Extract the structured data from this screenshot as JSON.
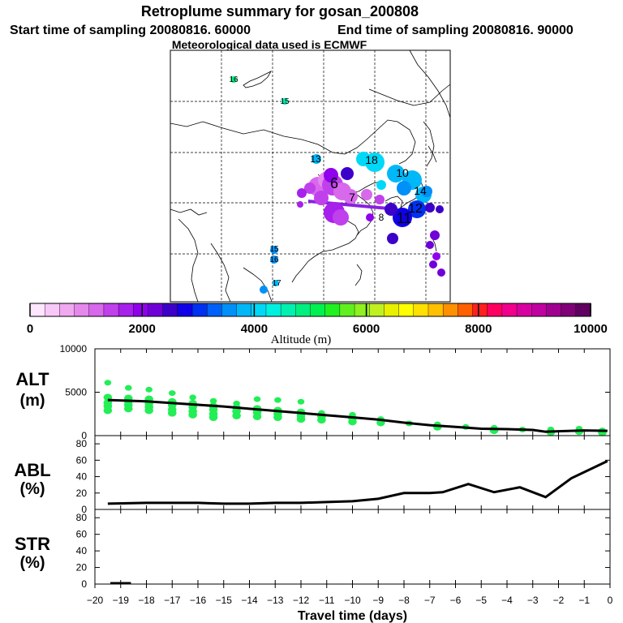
{
  "header": {
    "title": "Retroplume summary for gosan_200808",
    "start_label": "Start time of sampling 20080816. 60000",
    "end_label": "End time of sampling 20080816. 90000",
    "met_label": "Meteorological data used is ECMWF"
  },
  "colorbar": {
    "min": 0,
    "max": 10000,
    "tick_labels": [
      "0",
      "2000",
      "4000",
      "6000",
      "8000",
      "10000"
    ],
    "title": "Altitude (m)",
    "colors": [
      "#ffe6ff",
      "#f8c8f8",
      "#f0a8f0",
      "#e488ec",
      "#d868ec",
      "#c040ec",
      "#a820ec",
      "#9000ec",
      "#7000d8",
      "#3c00c8",
      "#1000e8",
      "#0030f0",
      "#0060f8",
      "#0090f8",
      "#00b8f8",
      "#00d8f8",
      "#00f0e0",
      "#00f0b0",
      "#00f080",
      "#00f050",
      "#20f020",
      "#60f020",
      "#90f020",
      "#c0f020",
      "#e8f000",
      "#ffff00",
      "#ffe000",
      "#ffc000",
      "#ff9000",
      "#ff6000",
      "#ff2020",
      "#ff0060",
      "#f0008c",
      "#d800a0",
      "#c000a0",
      "#a00090",
      "#800078",
      "#600060"
    ]
  },
  "map_labels": [
    {
      "text": "16",
      "color": "#00f080"
    },
    {
      "text": "15",
      "color": "#00f0b0"
    },
    {
      "text": "13",
      "color": "#00b8f8"
    },
    {
      "text": "18",
      "color": "#00d8f8"
    },
    {
      "text": "6",
      "color": "#d868ec"
    },
    {
      "text": "7",
      "color": "#c040ec"
    },
    {
      "text": "8",
      "color": "#a820ec"
    },
    {
      "text": "11",
      "color": "#1000e8"
    },
    {
      "text": "12",
      "color": "#3c00c8"
    },
    {
      "text": "14",
      "color": "#00b8f8"
    },
    {
      "text": "10",
      "color": "#3c00c8"
    },
    {
      "text": "15",
      "color": "#0090f8"
    },
    {
      "text": "16",
      "color": "#0090f8"
    },
    {
      "text": "17",
      "color": "#00b8f8"
    }
  ],
  "chart_data": [
    {
      "type": "scatter",
      "panel": "ALT",
      "ylabel": "ALT",
      "yunit": "(m)",
      "ylim": [
        0,
        10000
      ],
      "yticks": [
        0,
        5000,
        10000
      ],
      "xlim": [
        -20,
        0
      ],
      "xlabel": "Travel time (days)",
      "mean_line": {
        "x": [
          -19.5,
          -18,
          -17,
          -16,
          -15,
          -14,
          -13,
          -12,
          -11,
          -10,
          -9,
          -8,
          -7,
          -6,
          -5,
          -4,
          -3,
          -2.5,
          -2,
          -1,
          -0.1
        ],
        "y": [
          4100,
          3950,
          3750,
          3550,
          3350,
          3100,
          2850,
          2600,
          2350,
          2100,
          1850,
          1500,
          1200,
          1000,
          800,
          750,
          650,
          450,
          500,
          600,
          550
        ]
      },
      "points": [
        {
          "x": -19.5,
          "y": [
            6100,
            4400,
            3800,
            3400,
            2900
          ]
        },
        {
          "x": -18.7,
          "y": [
            5500,
            4300,
            3900,
            3500,
            3100
          ]
        },
        {
          "x": -17.9,
          "y": [
            5300,
            4200,
            3700,
            3300,
            2900
          ]
        },
        {
          "x": -17.0,
          "y": [
            4900,
            3900,
            3500,
            3000,
            2600
          ]
        },
        {
          "x": -16.2,
          "y": [
            4400,
            3700,
            3300,
            2800,
            2400
          ]
        },
        {
          "x": -15.4,
          "y": [
            4000,
            3400,
            3000,
            2500,
            2100
          ]
        },
        {
          "x": -14.5,
          "y": [
            3700,
            3200,
            2800,
            2300
          ]
        },
        {
          "x": -13.7,
          "y": [
            4200,
            3100,
            2700,
            2200
          ]
        },
        {
          "x": -12.9,
          "y": [
            4100,
            2900,
            2500,
            2100
          ]
        },
        {
          "x": -12.0,
          "y": [
            3900,
            2700,
            2300,
            1900
          ]
        },
        {
          "x": -11.2,
          "y": [
            2600,
            2200,
            1800
          ]
        },
        {
          "x": -10.0,
          "y": [
            2400,
            2000,
            1600
          ]
        },
        {
          "x": -8.9,
          "y": [
            1900,
            1500
          ]
        },
        {
          "x": -7.8,
          "y": [
            1400
          ]
        },
        {
          "x": -6.7,
          "y": [
            1300,
            1000
          ]
        },
        {
          "x": -5.6,
          "y": [
            1000
          ]
        },
        {
          "x": -4.5,
          "y": [
            900,
            600
          ]
        },
        {
          "x": -3.4,
          "y": [
            700
          ]
        },
        {
          "x": -2.3,
          "y": [
            700,
            400
          ]
        },
        {
          "x": -1.2,
          "y": [
            800,
            500
          ]
        },
        {
          "x": -0.3,
          "y": [
            600,
            350
          ]
        }
      ]
    },
    {
      "type": "line",
      "panel": "ABL",
      "ylabel": "ABL",
      "yunit": "(%)",
      "ylim": [
        0,
        90
      ],
      "yticks": [
        0,
        20,
        40,
        60,
        80
      ],
      "xlim": [
        -20,
        0
      ],
      "x": [
        -19.5,
        -18,
        -17,
        -16,
        -15,
        -14,
        -13,
        -12,
        -11,
        -10,
        -9,
        -8,
        -7,
        -6.5,
        -5.5,
        -4.5,
        -3.5,
        -2.5,
        -1.5,
        -0.1
      ],
      "y": [
        7,
        8,
        8,
        8,
        7,
        7,
        8,
        8,
        9,
        10,
        13,
        20,
        20,
        21,
        31,
        21,
        27,
        15,
        38,
        59
      ]
    },
    {
      "type": "line",
      "panel": "STR",
      "ylabel": "STR",
      "yunit": "(%)",
      "ylim": [
        0,
        90
      ],
      "yticks": [
        0,
        20,
        40,
        60,
        80
      ],
      "xlim": [
        -20,
        0
      ],
      "xlabel": "Travel time (days)",
      "xtick_labels": [
        "−20",
        "−19",
        "−18",
        "−17",
        "−16",
        "−15",
        "−14",
        "−13",
        "−12",
        "−11",
        "−10",
        "−9",
        "−8",
        "−7",
        "−6",
        "−5",
        "−4",
        "−3",
        "−2",
        "−1",
        "0"
      ],
      "x": [
        -19.4,
        -18.6
      ],
      "y": [
        1,
        1
      ]
    }
  ]
}
